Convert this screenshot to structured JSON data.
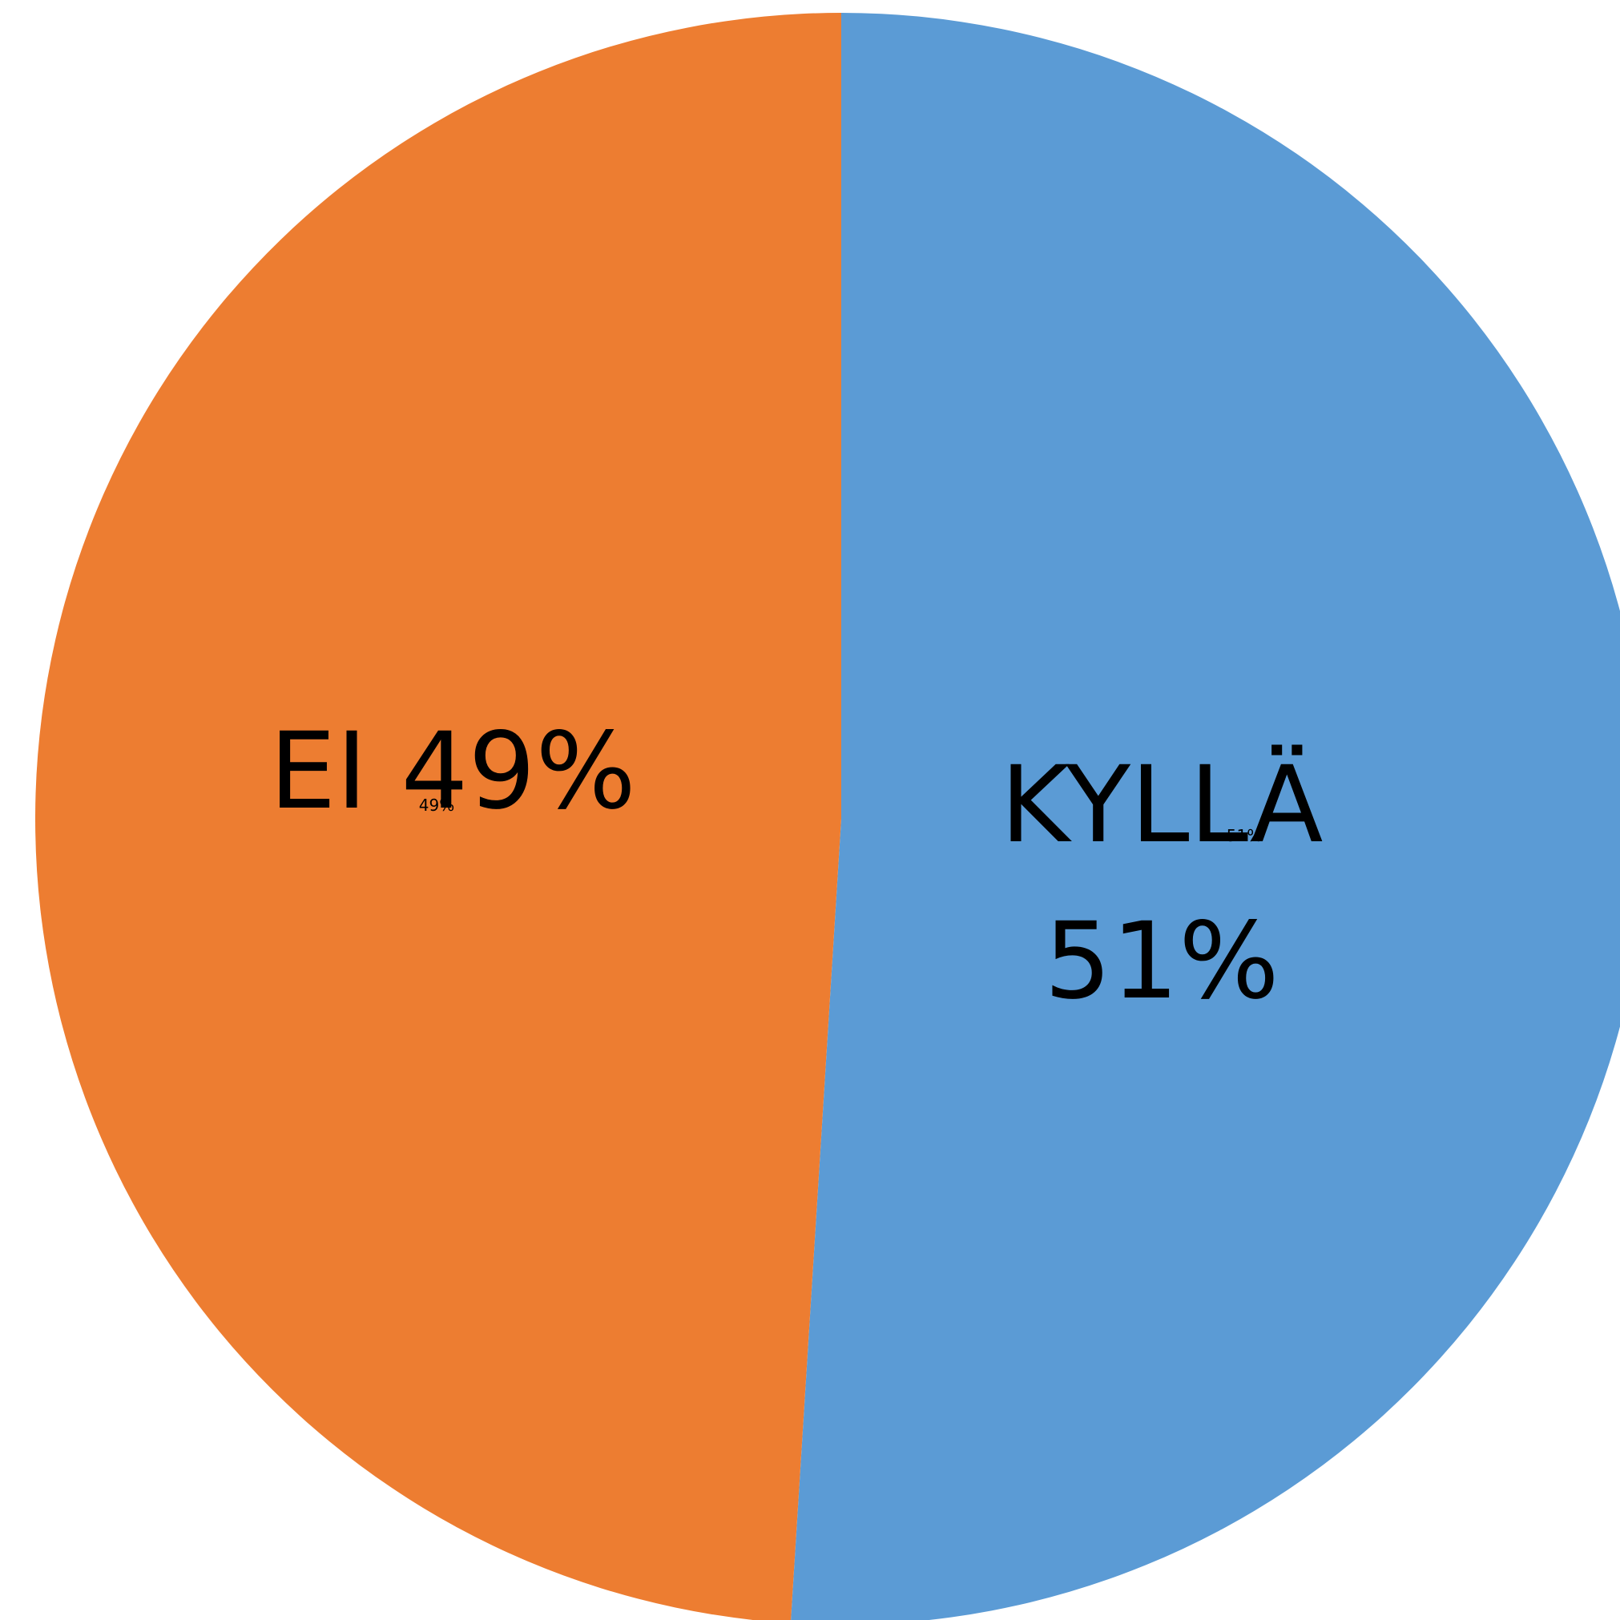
{
  "chart_data": {
    "type": "pie",
    "title": "",
    "slices": [
      {
        "label": "KYLLÄ",
        "value": 51,
        "percent_label": "51%",
        "color": "#5B9BD5"
      },
      {
        "label": "EI",
        "value": 49,
        "percent_label": "49%",
        "color": "#ED7D31"
      }
    ],
    "start_angle_deg": 0,
    "direction": "clockwise",
    "legend": "none"
  }
}
